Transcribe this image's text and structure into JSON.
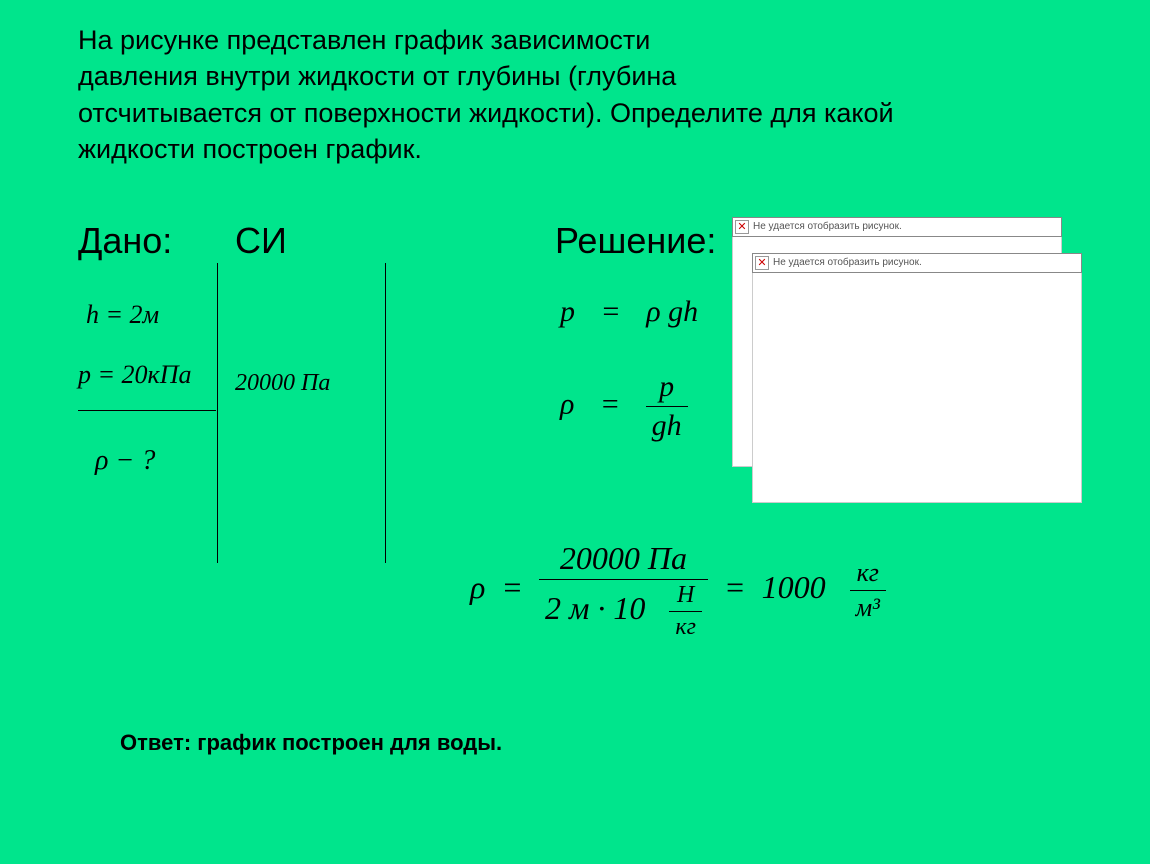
{
  "problem": {
    "text": "На рисунке представлен график зависимости\nдавления внутри жидкости от глубины (глубина\nотсчитывается от поверхности жидкости). Определите для какой\nжидкости построен график."
  },
  "labels": {
    "given": "Дано:",
    "si": "СИ",
    "solution": "Решение:"
  },
  "given": {
    "h": "h = 2м",
    "p": "p = 20кПа",
    "rho_question": "ρ − ?"
  },
  "si_values": {
    "p": "20000 Па"
  },
  "formulas": {
    "pressure": {
      "lhs": "p",
      "rhs": "ρ gh"
    },
    "density": {
      "lhs": "ρ",
      "num": "p",
      "den": "gh"
    },
    "calc": {
      "lhs": "ρ",
      "num": "20000  Па",
      "den_left": "2 м · 10",
      "den_frac_num": "Н",
      "den_frac_den": "кг",
      "result_val": "1000",
      "result_unit_num": "кг",
      "result_unit_den": "м³"
    }
  },
  "answer": "Ответ: график построен для воды.",
  "broken_image_text": "Не удается отобразить рисунок.",
  "colors": {
    "background": "#00e58c",
    "text": "#000000",
    "placeholder_border": "#888888"
  }
}
